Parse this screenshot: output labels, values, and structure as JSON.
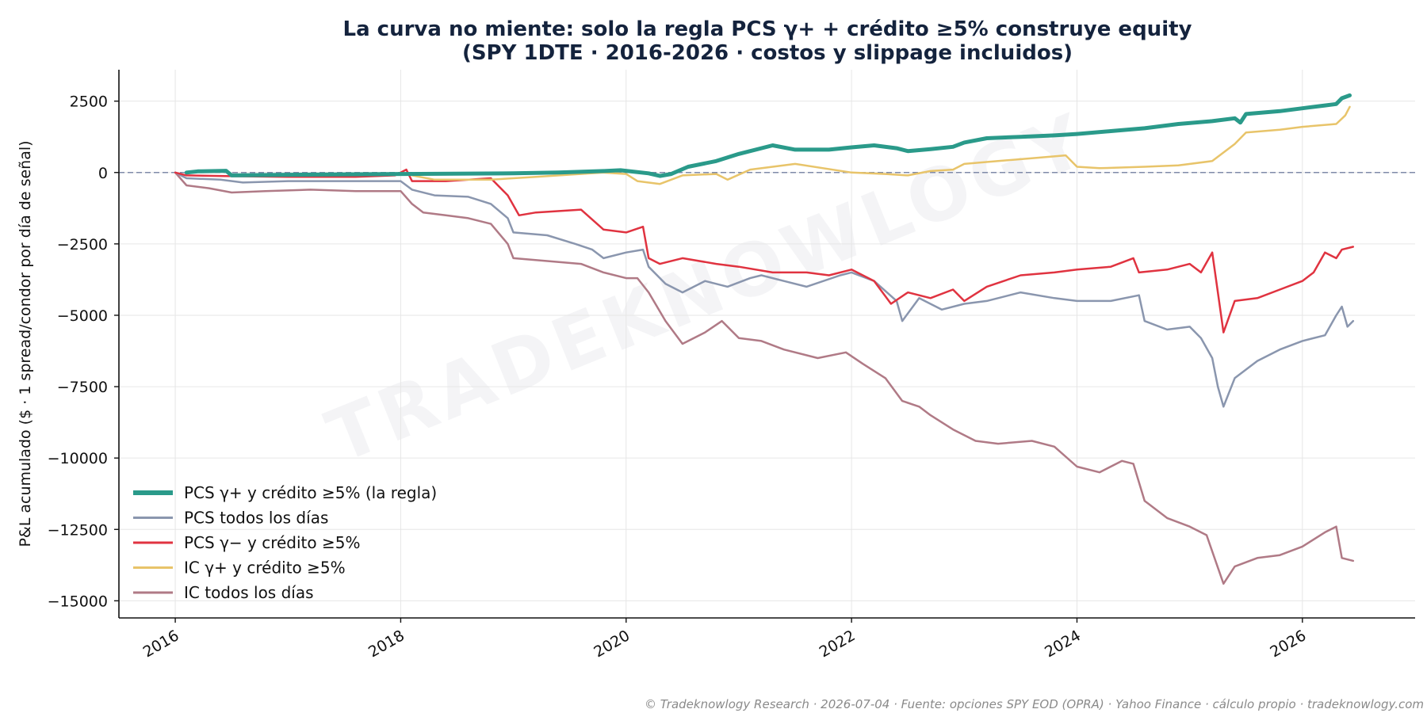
{
  "footer": "© Tradeknowlogy Research   ·   2026-07-04   ·   Fuente: opciones SPY EOD (OPRA) · Yahoo Finance · cálculo propio   ·   tradeknowlogy.com",
  "watermark": "TRADEKNOWLOGY",
  "chart_data": {
    "type": "line",
    "title": [
      "La curva no miente: solo la regla PCS γ+ + crédito ≥5% construye equity",
      "(SPY 1DTE · 2016-2026 · costos y slippage incluidos)"
    ],
    "xlabel": "",
    "ylabel": "P&L acumulado ($ · 1 spread/condor por día de señal)",
    "xlim": [
      2015.5,
      2027.0
    ],
    "ylim": [
      -15600,
      3600
    ],
    "x_ticks": [
      2016,
      2018,
      2020,
      2022,
      2024,
      2026
    ],
    "y_ticks": [
      2500,
      0,
      -2500,
      -5000,
      -7500,
      -10000,
      -12500,
      -15000
    ],
    "y_tick_labels": [
      "2500",
      "0",
      "−2500",
      "−5000",
      "−7500",
      "−10000",
      "−12500",
      "−15000"
    ],
    "zero_line": true,
    "grid": true,
    "legend_position": "lower-left",
    "series": [
      {
        "name": "PCS γ+ y crédito ≥5% (la regla)",
        "color": "#2a9a8a",
        "width": 5,
        "points": [
          [
            2016.1,
            0
          ],
          [
            2016.2,
            40
          ],
          [
            2016.45,
            60
          ],
          [
            2016.5,
            -100
          ],
          [
            2017.0,
            -80
          ],
          [
            2018.0,
            -50
          ],
          [
            2019.0,
            -30
          ],
          [
            2019.4,
            0
          ],
          [
            2019.8,
            50
          ],
          [
            2019.95,
            80
          ],
          [
            2020.2,
            -30
          ],
          [
            2020.3,
            -120
          ],
          [
            2020.4,
            -50
          ],
          [
            2020.55,
            200
          ],
          [
            2020.8,
            400
          ],
          [
            2021.0,
            650
          ],
          [
            2021.3,
            950
          ],
          [
            2021.5,
            800
          ],
          [
            2021.8,
            800
          ],
          [
            2022.0,
            880
          ],
          [
            2022.2,
            950
          ],
          [
            2022.4,
            850
          ],
          [
            2022.5,
            750
          ],
          [
            2022.7,
            820
          ],
          [
            2022.9,
            900
          ],
          [
            2023.0,
            1050
          ],
          [
            2023.2,
            1200
          ],
          [
            2023.5,
            1250
          ],
          [
            2023.8,
            1300
          ],
          [
            2024.0,
            1350
          ],
          [
            2024.3,
            1450
          ],
          [
            2024.6,
            1550
          ],
          [
            2024.9,
            1700
          ],
          [
            2025.2,
            1800
          ],
          [
            2025.4,
            1900
          ],
          [
            2025.45,
            1750
          ],
          [
            2025.5,
            2050
          ],
          [
            2025.8,
            2150
          ],
          [
            2026.0,
            2250
          ],
          [
            2026.2,
            2350
          ],
          [
            2026.3,
            2400
          ],
          [
            2026.35,
            2600
          ],
          [
            2026.42,
            2700
          ]
        ]
      },
      {
        "name": "PCS todos los días",
        "color": "#8a96ae",
        "width": 2.5,
        "points": [
          [
            2016.0,
            0
          ],
          [
            2016.1,
            -200
          ],
          [
            2016.4,
            -250
          ],
          [
            2016.6,
            -350
          ],
          [
            2017.0,
            -300
          ],
          [
            2017.5,
            -300
          ],
          [
            2018.0,
            -300
          ],
          [
            2018.1,
            -600
          ],
          [
            2018.3,
            -800
          ],
          [
            2018.6,
            -850
          ],
          [
            2018.8,
            -1100
          ],
          [
            2018.95,
            -1600
          ],
          [
            2019.0,
            -2100
          ],
          [
            2019.3,
            -2200
          ],
          [
            2019.55,
            -2500
          ],
          [
            2019.7,
            -2700
          ],
          [
            2019.8,
            -3000
          ],
          [
            2020.0,
            -2800
          ],
          [
            2020.15,
            -2700
          ],
          [
            2020.2,
            -3300
          ],
          [
            2020.35,
            -3900
          ],
          [
            2020.5,
            -4200
          ],
          [
            2020.7,
            -3800
          ],
          [
            2020.9,
            -4000
          ],
          [
            2021.1,
            -3700
          ],
          [
            2021.2,
            -3600
          ],
          [
            2021.4,
            -3800
          ],
          [
            2021.6,
            -4000
          ],
          [
            2021.9,
            -3600
          ],
          [
            2022.0,
            -3500
          ],
          [
            2022.2,
            -3800
          ],
          [
            2022.4,
            -4500
          ],
          [
            2022.45,
            -5200
          ],
          [
            2022.6,
            -4400
          ],
          [
            2022.8,
            -4800
          ],
          [
            2023.0,
            -4600
          ],
          [
            2023.2,
            -4500
          ],
          [
            2023.5,
            -4200
          ],
          [
            2023.8,
            -4400
          ],
          [
            2024.0,
            -4500
          ],
          [
            2024.3,
            -4500
          ],
          [
            2024.55,
            -4300
          ],
          [
            2024.6,
            -5200
          ],
          [
            2024.8,
            -5500
          ],
          [
            2025.0,
            -5400
          ],
          [
            2025.1,
            -5800
          ],
          [
            2025.2,
            -6500
          ],
          [
            2025.25,
            -7500
          ],
          [
            2025.3,
            -8200
          ],
          [
            2025.4,
            -7200
          ],
          [
            2025.6,
            -6600
          ],
          [
            2025.8,
            -6200
          ],
          [
            2026.0,
            -5900
          ],
          [
            2026.2,
            -5700
          ],
          [
            2026.3,
            -5000
          ],
          [
            2026.35,
            -4700
          ],
          [
            2026.4,
            -5400
          ],
          [
            2026.45,
            -5200
          ]
        ]
      },
      {
        "name": "PCS γ− y crédito ≥5%",
        "color": "#e03340",
        "width": 2.5,
        "points": [
          [
            2016.0,
            0
          ],
          [
            2016.1,
            -100
          ],
          [
            2016.5,
            -130
          ],
          [
            2017.0,
            -150
          ],
          [
            2017.6,
            -150
          ],
          [
            2017.95,
            -100
          ],
          [
            2018.05,
            100
          ],
          [
            2018.1,
            -300
          ],
          [
            2018.4,
            -300
          ],
          [
            2018.8,
            -200
          ],
          [
            2018.95,
            -800
          ],
          [
            2019.05,
            -1500
          ],
          [
            2019.2,
            -1400
          ],
          [
            2019.6,
            -1300
          ],
          [
            2019.8,
            -2000
          ],
          [
            2020.0,
            -2100
          ],
          [
            2020.15,
            -1900
          ],
          [
            2020.2,
            -3000
          ],
          [
            2020.3,
            -3200
          ],
          [
            2020.5,
            -3000
          ],
          [
            2020.8,
            -3200
          ],
          [
            2021.0,
            -3300
          ],
          [
            2021.3,
            -3500
          ],
          [
            2021.6,
            -3500
          ],
          [
            2021.8,
            -3600
          ],
          [
            2022.0,
            -3400
          ],
          [
            2022.2,
            -3800
          ],
          [
            2022.35,
            -4600
          ],
          [
            2022.5,
            -4200
          ],
          [
            2022.7,
            -4400
          ],
          [
            2022.9,
            -4100
          ],
          [
            2023.0,
            -4500
          ],
          [
            2023.2,
            -4000
          ],
          [
            2023.5,
            -3600
          ],
          [
            2023.8,
            -3500
          ],
          [
            2024.0,
            -3400
          ],
          [
            2024.3,
            -3300
          ],
          [
            2024.5,
            -3000
          ],
          [
            2024.55,
            -3500
          ],
          [
            2024.8,
            -3400
          ],
          [
            2025.0,
            -3200
          ],
          [
            2025.1,
            -3500
          ],
          [
            2025.2,
            -2800
          ],
          [
            2025.25,
            -4200
          ],
          [
            2025.3,
            -5600
          ],
          [
            2025.4,
            -4500
          ],
          [
            2025.6,
            -4400
          ],
          [
            2025.8,
            -4100
          ],
          [
            2026.0,
            -3800
          ],
          [
            2026.1,
            -3500
          ],
          [
            2026.2,
            -2800
          ],
          [
            2026.3,
            -3000
          ],
          [
            2026.35,
            -2700
          ],
          [
            2026.45,
            -2600
          ]
        ]
      },
      {
        "name": "IC γ+ y crédito ≥5%",
        "color": "#e8c46a",
        "width": 2.5,
        "points": [
          [
            2018.1,
            -100
          ],
          [
            2018.3,
            -250
          ],
          [
            2018.8,
            -250
          ],
          [
            2019.2,
            -150
          ],
          [
            2019.8,
            0
          ],
          [
            2020.0,
            -50
          ],
          [
            2020.1,
            -300
          ],
          [
            2020.3,
            -400
          ],
          [
            2020.5,
            -100
          ],
          [
            2020.8,
            -50
          ],
          [
            2020.9,
            -250
          ],
          [
            2021.1,
            100
          ],
          [
            2021.5,
            300
          ],
          [
            2022.0,
            0
          ],
          [
            2022.3,
            -50
          ],
          [
            2022.5,
            -100
          ],
          [
            2022.7,
            50
          ],
          [
            2022.9,
            100
          ],
          [
            2023.0,
            300
          ],
          [
            2023.3,
            400
          ],
          [
            2023.6,
            500
          ],
          [
            2023.9,
            600
          ],
          [
            2024.0,
            200
          ],
          [
            2024.2,
            150
          ],
          [
            2024.6,
            200
          ],
          [
            2024.9,
            250
          ],
          [
            2025.2,
            400
          ],
          [
            2025.4,
            1000
          ],
          [
            2025.5,
            1400
          ],
          [
            2025.8,
            1500
          ],
          [
            2026.0,
            1600
          ],
          [
            2026.3,
            1700
          ],
          [
            2026.38,
            2000
          ],
          [
            2026.42,
            2300
          ]
        ]
      },
      {
        "name": "IC todos los días",
        "color": "#b07a86",
        "width": 2.5,
        "points": [
          [
            2016.0,
            0
          ],
          [
            2016.1,
            -450
          ],
          [
            2016.3,
            -550
          ],
          [
            2016.5,
            -700
          ],
          [
            2016.8,
            -650
          ],
          [
            2017.2,
            -600
          ],
          [
            2017.6,
            -650
          ],
          [
            2018.0,
            -650
          ],
          [
            2018.1,
            -1100
          ],
          [
            2018.2,
            -1400
          ],
          [
            2018.4,
            -1500
          ],
          [
            2018.6,
            -1600
          ],
          [
            2018.8,
            -1800
          ],
          [
            2018.95,
            -2500
          ],
          [
            2019.0,
            -3000
          ],
          [
            2019.3,
            -3100
          ],
          [
            2019.6,
            -3200
          ],
          [
            2019.8,
            -3500
          ],
          [
            2020.0,
            -3700
          ],
          [
            2020.1,
            -3700
          ],
          [
            2020.2,
            -4200
          ],
          [
            2020.35,
            -5200
          ],
          [
            2020.5,
            -6000
          ],
          [
            2020.7,
            -5600
          ],
          [
            2020.85,
            -5200
          ],
          [
            2021.0,
            -5800
          ],
          [
            2021.2,
            -5900
          ],
          [
            2021.4,
            -6200
          ],
          [
            2021.7,
            -6500
          ],
          [
            2021.95,
            -6300
          ],
          [
            2022.1,
            -6700
          ],
          [
            2022.3,
            -7200
          ],
          [
            2022.45,
            -8000
          ],
          [
            2022.6,
            -8200
          ],
          [
            2022.7,
            -8500
          ],
          [
            2022.9,
            -9000
          ],
          [
            2023.1,
            -9400
          ],
          [
            2023.3,
            -9500
          ],
          [
            2023.6,
            -9400
          ],
          [
            2023.8,
            -9600
          ],
          [
            2024.0,
            -10300
          ],
          [
            2024.2,
            -10500
          ],
          [
            2024.4,
            -10100
          ],
          [
            2024.5,
            -10200
          ],
          [
            2024.6,
            -11500
          ],
          [
            2024.8,
            -12100
          ],
          [
            2025.0,
            -12400
          ],
          [
            2025.15,
            -12700
          ],
          [
            2025.3,
            -14400
          ],
          [
            2025.4,
            -13800
          ],
          [
            2025.6,
            -13500
          ],
          [
            2025.8,
            -13400
          ],
          [
            2026.0,
            -13100
          ],
          [
            2026.2,
            -12600
          ],
          [
            2026.3,
            -12400
          ],
          [
            2026.35,
            -13500
          ],
          [
            2026.45,
            -13600
          ]
        ]
      }
    ]
  }
}
